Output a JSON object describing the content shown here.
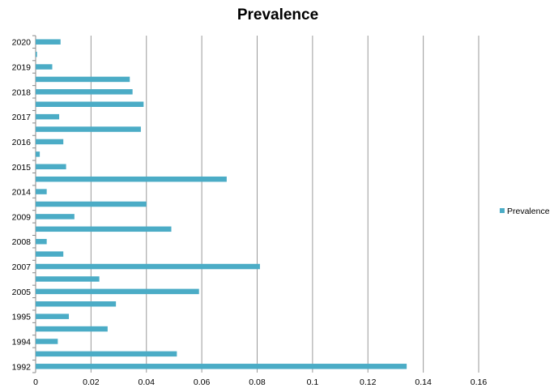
{
  "chart_data": {
    "type": "bar",
    "orientation": "horizontal",
    "title": "Prevalence",
    "xlabel": "",
    "ylabel": "",
    "xlim": [
      0,
      0.16
    ],
    "x_ticks": [
      "0",
      "0.02",
      "0.04",
      "0.06",
      "0.08",
      "0.1",
      "0.12",
      "0.14",
      "0.16"
    ],
    "grid": "vertical",
    "legend_position": "right",
    "categories": [
      "1992",
      "",
      "1994",
      "",
      "1995",
      "",
      "2005",
      "",
      "2007",
      "",
      "2008",
      "",
      "2009",
      "",
      "2014",
      "",
      "2015",
      "",
      "2016",
      "",
      "2017",
      "",
      "2018",
      "",
      "2019",
      "",
      "2020"
    ],
    "series": [
      {
        "name": "Prevalence",
        "color": "#4BACC6",
        "values": [
          0.134,
          0.051,
          0.008,
          0.026,
          0.012,
          0.029,
          0.059,
          0.023,
          0.081,
          0.01,
          0.004,
          0.049,
          0.014,
          0.04,
          0.004,
          0.069,
          0.011,
          0.0015,
          0.01,
          0.038,
          0.0085,
          0.039,
          0.035,
          0.034,
          0.006,
          0.0005,
          0.009
        ]
      }
    ]
  }
}
